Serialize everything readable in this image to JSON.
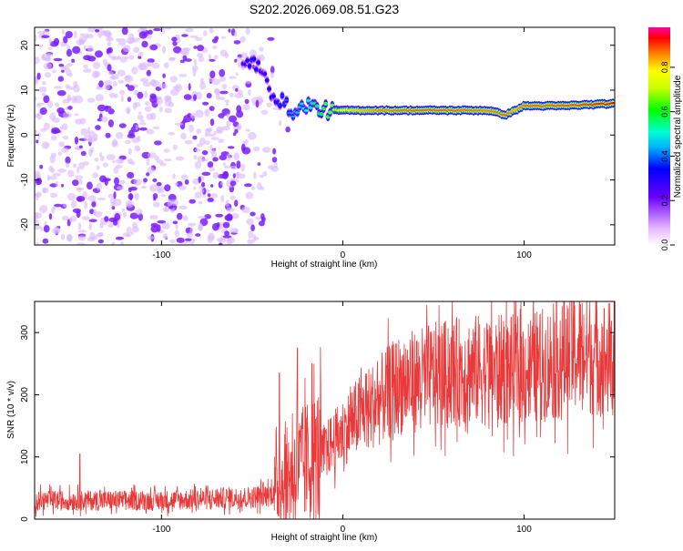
{
  "title": "S202.2026.069.08.51.G23",
  "chart_data": [
    {
      "type": "heatmap",
      "xlabel": "Height of straight line (km)",
      "ylabel": "Frequency (Hz)",
      "xlim": [
        -170,
        150
      ],
      "ylim": [
        -24.5,
        24
      ],
      "xticks": [
        -100,
        0,
        100
      ],
      "yticks": [
        -20,
        -10,
        0,
        10,
        20
      ],
      "colorbar": {
        "label": "Normalized spectral amplitude",
        "range": [
          0,
          0.98
        ],
        "ticks": [
          "0.0",
          "0.2",
          "0.4",
          "0.6",
          "0.8"
        ],
        "tick_values": [
          0,
          0.2,
          0.4,
          0.6,
          0.8
        ]
      },
      "noise_region": {
        "x_range": [
          -170,
          -30
        ],
        "freq_range": [
          -24.5,
          24
        ]
      },
      "ridge": {
        "x": [
          -55,
          -50,
          -45,
          -40,
          -35,
          -30,
          -25,
          -20,
          -15,
          -10,
          -5,
          0,
          20,
          40,
          60,
          80,
          90,
          95,
          100,
          120,
          150
        ],
        "freq": [
          15,
          17,
          14,
          10,
          8,
          6,
          5,
          7,
          6,
          5.5,
          5.5,
          5.5,
          5.5,
          5.5,
          5.5,
          5.5,
          4.5,
          5.5,
          6.5,
          6.5,
          7
        ],
        "amplitude": [
          0.3,
          0.4,
          0.3,
          0.35,
          0.4,
          0.45,
          0.5,
          0.55,
          0.6,
          0.65,
          0.7,
          0.8,
          0.88,
          0.9,
          0.9,
          0.88,
          0.9,
          0.85,
          0.9,
          0.9,
          0.95
        ]
      }
    },
    {
      "type": "line",
      "xlabel": "Height of straight line (km)",
      "ylabel": "SNR (10 * v/v)",
      "xlim": [
        -170,
        150
      ],
      "ylim": [
        0,
        350
      ],
      "xticks": [
        -100,
        0,
        100
      ],
      "yticks": [
        0,
        100,
        200,
        300
      ],
      "series": [
        {
          "name": "SNR",
          "color": "#e83a3a",
          "trend_x": [
            -170,
            -100,
            -50,
            -40,
            -30,
            -20,
            -10,
            0,
            10,
            20,
            30,
            50,
            70,
            100,
            125,
            130,
            150
          ],
          "trend_y": [
            30,
            30,
            35,
            40,
            70,
            90,
            110,
            140,
            170,
            190,
            215,
            230,
            240,
            240,
            260,
            270,
            255
          ],
          "spikes_x": [
            -145,
            -35,
            -25,
            -17,
            126
          ],
          "spikes_y": [
            105,
            235,
            275,
            250,
            350
          ]
        }
      ]
    }
  ]
}
